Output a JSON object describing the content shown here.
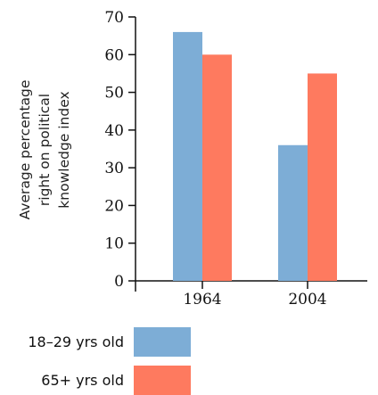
{
  "chart_data": {
    "type": "bar",
    "title": "",
    "xlabel": "",
    "ylabel_lines": [
      "Average percentage",
      "right on political",
      "knowledge index"
    ],
    "categories": [
      "1964",
      "2004"
    ],
    "series": [
      {
        "name": "18–29 yrs old",
        "color": "#7dadd6",
        "values": [
          66,
          36
        ]
      },
      {
        "name": "65+ yrs old",
        "color": "#fe7a5f",
        "values": [
          60,
          55
        ]
      }
    ],
    "ylim": [
      0,
      70
    ],
    "yticks": [
      0,
      10,
      20,
      30,
      40,
      50,
      60,
      70
    ],
    "grid": false,
    "legend_position": "bottom-left"
  }
}
